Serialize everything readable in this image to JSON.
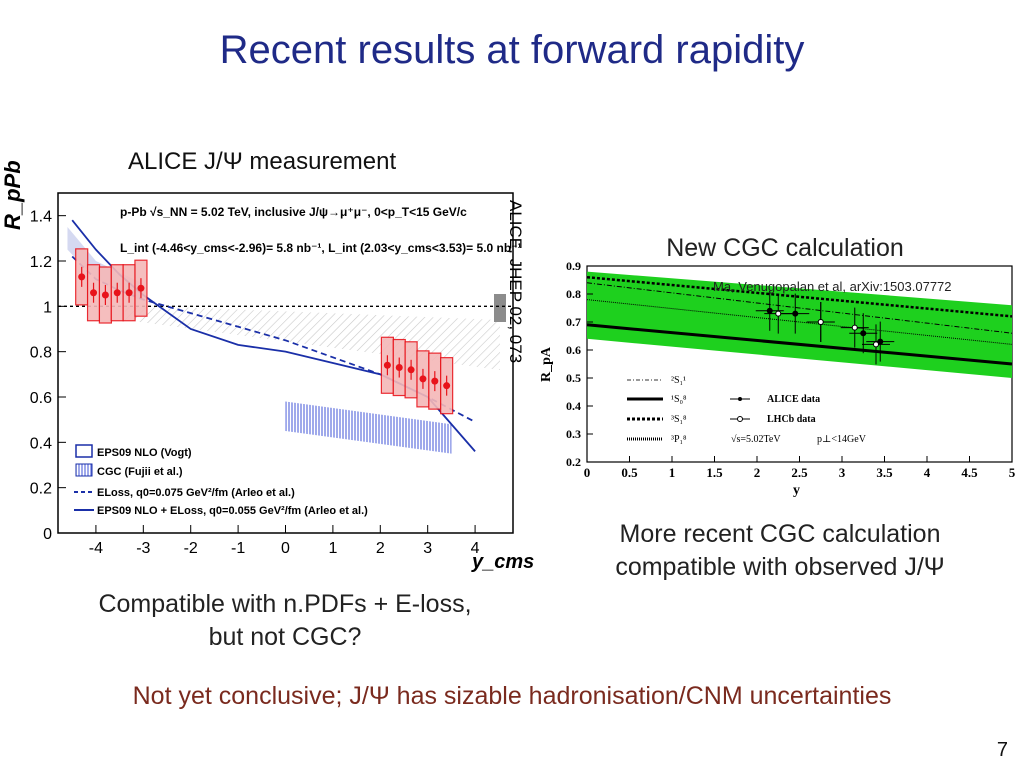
{
  "slide": {
    "title": "Recent results at forward rapidity",
    "left_heading": "ALICE J/Ψ measurement",
    "reference": "ALICE, JHEP 02, 073",
    "right_heading": "New CGC calculation",
    "right_citation": "Ma, Venugopalan et al, arXiv:1503.07772",
    "right_caption_1": "More recent CGC calculation",
    "right_caption_2": "compatible with observed J/Ψ",
    "left_caption_1": "Compatible with n.PDFs + E-loss,",
    "left_caption_2": "but not CGC?",
    "conclusion": "Not yet conclusive; J/Ψ has sizable hadronisation/CNM uncertainties",
    "page_number": "7"
  },
  "chart_data": [
    {
      "type": "scatter",
      "ylabel": "R_pPb",
      "xlabel": "y_cms",
      "xlim": [
        -4.8,
        4.8
      ],
      "ylim": [
        0,
        1.5
      ],
      "x_ticks": [
        "-4",
        "-3",
        "-2",
        "-1",
        "0",
        "1",
        "2",
        "3",
        "4"
      ],
      "y_ticks": [
        "0",
        "0.2",
        "0.4",
        "0.6",
        "0.8",
        "1",
        "1.2",
        "1.4"
      ],
      "header_line1": "p-Pb  √s_NN = 5.02 TeV, inclusive J/ψ→μ⁺μ⁻, 0<p_T<15 GeV/c",
      "header_line2": "L_int (-4.46<y_cms<-2.96)= 5.8 nb⁻¹, L_int (2.03<y_cms<3.53)= 5.0 nb⁻¹",
      "legend": [
        {
          "name": "EPS09 NLO (Vogt)",
          "style": "open-box",
          "color": "#1a2fa8"
        },
        {
          "name": "CGC (Fujii et al.)",
          "style": "hatched-box",
          "color": "#6f7fe0"
        },
        {
          "name": "ELoss, q0=0.075 GeV²/fm (Arleo et al.)",
          "style": "dashed",
          "color": "#1a2fa8"
        },
        {
          "name": "EPS09 NLO + ELoss, q0=0.055 GeV²/fm (Arleo et al.)",
          "style": "solid",
          "color": "#1a2fa8"
        }
      ],
      "series": [
        {
          "name": "data",
          "color": "#e8141b",
          "x": [
            -4.3,
            -4.05,
            -3.8,
            -3.55,
            -3.3,
            -3.05,
            2.15,
            2.4,
            2.65,
            2.9,
            3.15,
            3.4
          ],
          "y": [
            1.13,
            1.06,
            1.05,
            1.06,
            1.06,
            1.08,
            0.74,
            0.73,
            0.72,
            0.68,
            0.67,
            0.65
          ]
        }
      ],
      "curves": {
        "eloss_dashed": {
          "x": [
            -4.5,
            -4.0,
            -3.5,
            -3.0,
            -2.0,
            0.0,
            2.0,
            3.0,
            4.0
          ],
          "y": [
            1.22,
            1.12,
            1.07,
            1.03,
            0.97,
            0.85,
            0.7,
            0.6,
            0.49
          ]
        },
        "eps09_eloss_solid": {
          "x": [
            -4.5,
            -4.0,
            -3.5,
            -3.0,
            -2.0,
            -1.0,
            0.0,
            2.0,
            3.0,
            4.0
          ],
          "y": [
            1.38,
            1.25,
            1.14,
            1.05,
            0.9,
            0.83,
            0.8,
            0.7,
            0.6,
            0.36
          ]
        },
        "cgc_band": {
          "x": [
            0,
            3.5
          ],
          "ylow": [
            0.45,
            0.35
          ],
          "yhigh": [
            0.58,
            0.48
          ]
        }
      }
    },
    {
      "type": "line",
      "ylabel": "R_pA",
      "xlabel": "y",
      "xlim": [
        0,
        5
      ],
      "ylim": [
        0.2,
        0.9
      ],
      "x_ticks": [
        "0",
        "0.5",
        "1",
        "1.5",
        "2",
        "2.5",
        "3",
        "3.5",
        "4",
        "4.5",
        "5"
      ],
      "y_ticks": [
        "0.2",
        "0.3",
        "0.4",
        "0.5",
        "0.6",
        "0.7",
        "0.8",
        "0.9"
      ],
      "legend_states": [
        "²S₁¹",
        "¹S₀⁸",
        "³S₁⁸",
        "³P₁⁸"
      ],
      "legend_data": [
        "ALICE data",
        "LHCb data"
      ],
      "legend_note_1": "√s=5.02TeV",
      "legend_note_2": "p⊥<14GeV",
      "band": {
        "x": [
          0,
          5
        ],
        "ylow": [
          0.64,
          0.5
        ],
        "yhigh": [
          0.88,
          0.76
        ],
        "color": "#1ed01e"
      },
      "series": [
        {
          "name": "ALICE data",
          "x": [
            2.15,
            2.45,
            2.75,
            3.25,
            3.45
          ],
          "y": [
            0.74,
            0.73,
            0.7,
            0.66,
            0.63
          ]
        },
        {
          "name": "LHCb data",
          "x": [
            2.25,
            2.75,
            3.15,
            3.4
          ],
          "y": [
            0.73,
            0.7,
            0.68,
            0.62
          ]
        }
      ]
    }
  ]
}
